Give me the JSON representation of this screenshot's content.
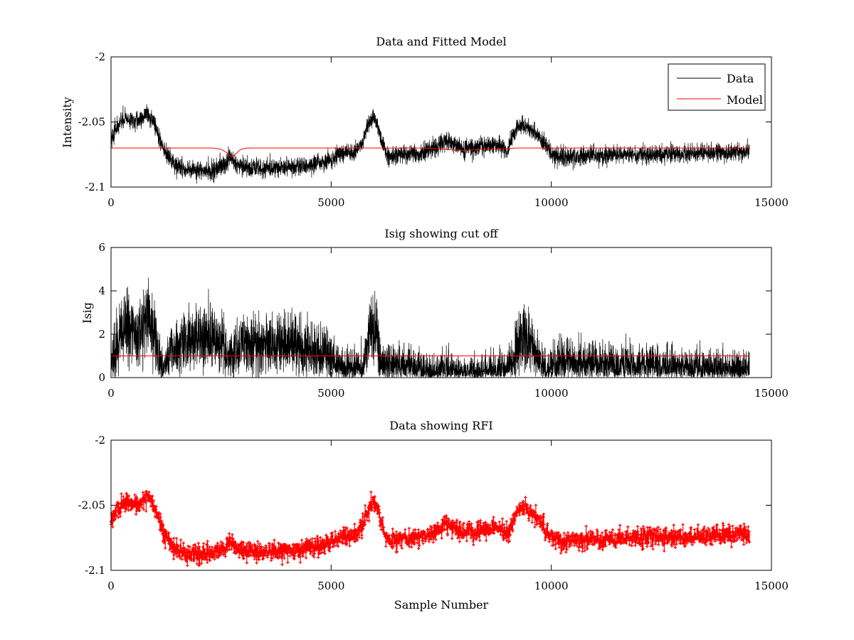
{
  "chart_data": [
    {
      "type": "line",
      "title": "Data and Fitted Model",
      "xlabel": "",
      "ylabel": "Intensity",
      "xlim": [
        0,
        15000
      ],
      "ylim": [
        -2.1,
        -2.0
      ],
      "xticks": [
        0,
        5000,
        10000,
        15000
      ],
      "xtick_labels": [
        "0",
        "5000",
        "10000",
        "15000"
      ],
      "yticks": [
        -2.1,
        -2.05,
        -2.0
      ],
      "ytick_labels": [
        "-2.1",
        "-2.05",
        "-2"
      ],
      "legend": {
        "position": "top-right",
        "entries": [
          "Data",
          "Model"
        ]
      },
      "series": [
        {
          "name": "Data",
          "color": "#000000",
          "style": "noisy-line",
          "noise": 0.0035,
          "x": [
            0,
            150,
            300,
            500,
            650,
            800,
            900,
            1000,
            1100,
            1200,
            1400,
            1700,
            2000,
            2300,
            2600,
            2700,
            2750,
            2850,
            3000,
            3500,
            4000,
            4500,
            5000,
            5300,
            5500,
            5700,
            5850,
            5950,
            6050,
            6150,
            6250,
            6400,
            7000,
            7400,
            7600,
            7800,
            8000,
            8400,
            8800,
            9000,
            9200,
            9350,
            9500,
            9700,
            9900,
            10050,
            10300,
            11000,
            12000,
            13000,
            14000,
            14500
          ],
          "y": [
            -2.063,
            -2.054,
            -2.047,
            -2.05,
            -2.049,
            -2.043,
            -2.046,
            -2.052,
            -2.062,
            -2.072,
            -2.082,
            -2.087,
            -2.088,
            -2.087,
            -2.083,
            -2.077,
            -2.079,
            -2.084,
            -2.085,
            -2.086,
            -2.085,
            -2.083,
            -2.079,
            -2.072,
            -2.074,
            -2.066,
            -2.052,
            -2.047,
            -2.052,
            -2.065,
            -2.076,
            -2.076,
            -2.074,
            -2.07,
            -2.065,
            -2.067,
            -2.071,
            -2.069,
            -2.067,
            -2.072,
            -2.056,
            -2.052,
            -2.055,
            -2.06,
            -2.07,
            -2.076,
            -2.077,
            -2.076,
            -2.075,
            -2.074,
            -2.073,
            -2.073
          ]
        },
        {
          "name": "Model",
          "color": "#ff0000",
          "style": "line",
          "x": [
            0,
            2000,
            2300,
            2500,
            2650,
            2700,
            2750,
            2850,
            2950,
            3100,
            3500,
            7000,
            7600,
            8000,
            8400,
            8800,
            9200,
            10000,
            14500
          ],
          "y": [
            -2.07,
            -2.07,
            -2.07,
            -2.071,
            -2.074,
            -2.076,
            -2.077,
            -2.074,
            -2.071,
            -2.07,
            -2.07,
            -2.07,
            -2.071,
            -2.072,
            -2.071,
            -2.071,
            -2.07,
            -2.07,
            -2.07
          ]
        }
      ]
    },
    {
      "type": "line",
      "title": "Isig showing cut off",
      "xlabel": "",
      "ylabel": "Isig",
      "xlim": [
        0,
        15000
      ],
      "ylim": [
        0,
        6
      ],
      "xticks": [
        0,
        5000,
        10000,
        15000
      ],
      "xtick_labels": [
        "0",
        "5000",
        "10000",
        "15000"
      ],
      "yticks": [
        0,
        2,
        4,
        6
      ],
      "ytick_labels": [
        "0",
        "2",
        "4",
        "6"
      ],
      "series": [
        {
          "name": "Isig",
          "color": "#000000",
          "style": "noisy-line",
          "noise": 0.7,
          "x": [
            0,
            150,
            300,
            500,
            650,
            800,
            900,
            1000,
            1100,
            1200,
            1400,
            1700,
            2000,
            2300,
            2600,
            2700,
            2750,
            2850,
            3000,
            3500,
            4000,
            4500,
            5000,
            5300,
            5500,
            5700,
            5850,
            5950,
            6050,
            6150,
            6250,
            6400,
            7000,
            7400,
            7600,
            7800,
            8000,
            8400,
            8800,
            9000,
            9200,
            9350,
            9500,
            9700,
            9900,
            10050,
            10300,
            11000,
            12000,
            13000,
            14000,
            14500
          ],
          "y": [
            0.7,
            1.6,
            2.3,
            2.0,
            2.1,
            2.7,
            2.4,
            1.8,
            0.8,
            0.2,
            1.2,
            1.7,
            1.8,
            1.7,
            1.3,
            0.7,
            0.9,
            1.4,
            1.5,
            1.6,
            1.5,
            1.3,
            0.9,
            0.2,
            0.4,
            0.4,
            1.8,
            2.3,
            1.8,
            0.5,
            0.6,
            0.6,
            0.4,
            0.0,
            0.5,
            0.3,
            0.1,
            0.1,
            0.3,
            0.2,
            1.4,
            1.8,
            1.5,
            1.0,
            0.0,
            0.6,
            0.7,
            0.6,
            0.5,
            0.4,
            0.3,
            0.3
          ]
        },
        {
          "name": "Cut off",
          "color": "#ff0000",
          "style": "line",
          "x": [
            0,
            14500
          ],
          "y": [
            1,
            1
          ]
        }
      ]
    },
    {
      "type": "scatter",
      "title": "Data showing RFI",
      "xlabel": "Sample Number",
      "ylabel": "",
      "xlim": [
        0,
        15000
      ],
      "ylim": [
        -2.1,
        -2.0
      ],
      "xticks": [
        0,
        5000,
        10000,
        15000
      ],
      "xtick_labels": [
        "0",
        "5000",
        "10000",
        "15000"
      ],
      "yticks": [
        -2.1,
        -2.05,
        -2.0
      ],
      "ytick_labels": [
        "-2.1",
        "-2.05",
        "-2"
      ],
      "series": [
        {
          "name": "RFI",
          "color": "#ff0000",
          "style": "noisy-markers",
          "noise": 0.0035,
          "x": [
            0,
            150,
            300,
            500,
            650,
            800,
            900,
            1000,
            1100,
            1200,
            1400,
            1700,
            2000,
            2300,
            2600,
            2700,
            2750,
            2850,
            3000,
            3500,
            4000,
            4500,
            5000,
            5300,
            5500,
            5700,
            5850,
            5950,
            6050,
            6150,
            6250,
            6400,
            7000,
            7400,
            7600,
            7800,
            8000,
            8400,
            8800,
            9000,
            9200,
            9350,
            9500,
            9700,
            9900,
            10050,
            10300,
            11000,
            12000,
            13000,
            14000,
            14500
          ],
          "y": [
            -2.063,
            -2.054,
            -2.047,
            -2.05,
            -2.049,
            -2.043,
            -2.046,
            -2.052,
            -2.062,
            -2.072,
            -2.082,
            -2.087,
            -2.088,
            -2.087,
            -2.083,
            -2.077,
            -2.079,
            -2.084,
            -2.085,
            -2.086,
            -2.085,
            -2.083,
            -2.079,
            -2.072,
            -2.074,
            -2.066,
            -2.052,
            -2.047,
            -2.052,
            -2.065,
            -2.076,
            -2.076,
            -2.074,
            -2.07,
            -2.065,
            -2.067,
            -2.071,
            -2.069,
            -2.067,
            -2.072,
            -2.056,
            -2.052,
            -2.055,
            -2.06,
            -2.07,
            -2.076,
            -2.077,
            -2.076,
            -2.075,
            -2.074,
            -2.073,
            -2.073
          ]
        }
      ]
    }
  ]
}
